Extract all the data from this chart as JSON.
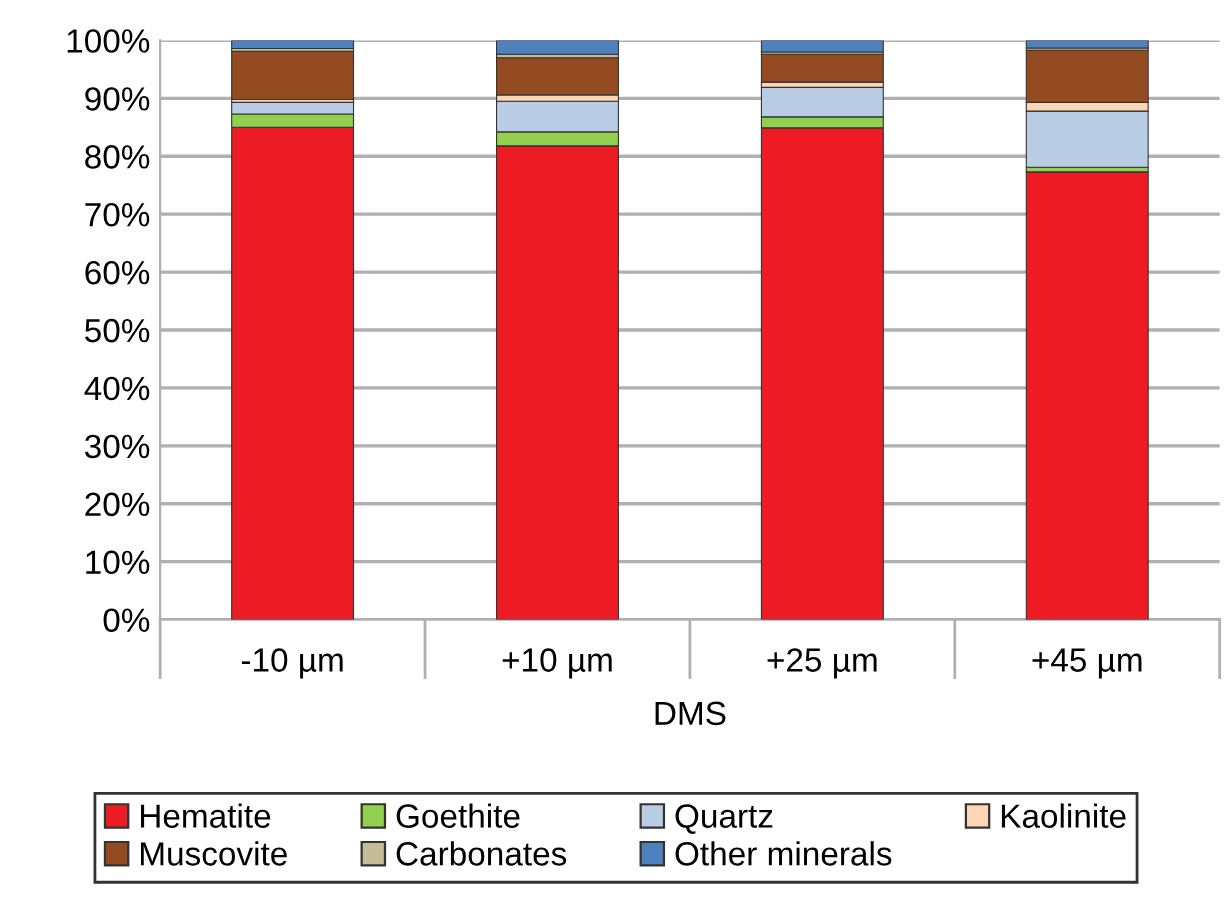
{
  "chart_data": {
    "type": "bar",
    "stacked": true,
    "xlabel": "DMS",
    "categories": [
      "-10 µm",
      "+10 µm",
      "+25 µm",
      "+45 µm"
    ],
    "ylim": [
      0,
      100
    ],
    "yticks": [
      {
        "value": 0,
        "label": "0%"
      },
      {
        "value": 10,
        "label": "10%"
      },
      {
        "value": 20,
        "label": "20%"
      },
      {
        "value": 30,
        "label": "30%"
      },
      {
        "value": 40,
        "label": "40%"
      },
      {
        "value": 50,
        "label": "50%"
      },
      {
        "value": 60,
        "label": "60%"
      },
      {
        "value": 70,
        "label": "70%"
      },
      {
        "value": 80,
        "label": "80%"
      },
      {
        "value": 90,
        "label": "90%"
      },
      {
        "value": 100,
        "label": "100%"
      }
    ],
    "grid": "y",
    "legend": "bottom",
    "series": [
      {
        "name": "Hematite",
        "color": "#ed1c24",
        "values": [
          85.0,
          81.8,
          84.9,
          77.3
        ]
      },
      {
        "name": "Goethite",
        "color": "#92d050",
        "values": [
          2.3,
          2.4,
          1.9,
          0.8
        ]
      },
      {
        "name": "Quartz",
        "color": "#b9cde5",
        "values": [
          2.0,
          5.3,
          5.1,
          9.7
        ]
      },
      {
        "name": "Kaolinite",
        "color": "#fcd5b5",
        "values": [
          0.5,
          1.1,
          0.9,
          1.5
        ]
      },
      {
        "name": "Muscovite",
        "color": "#954b22",
        "values": [
          8.3,
          6.4,
          4.8,
          9.0
        ]
      },
      {
        "name": "Carbonates",
        "color": "#c4bd97",
        "values": [
          0.5,
          0.6,
          0.4,
          0.4
        ]
      },
      {
        "name": "Other minerals",
        "color": "#4f81bd",
        "values": [
          1.4,
          2.4,
          2.0,
          1.3
        ]
      }
    ]
  }
}
